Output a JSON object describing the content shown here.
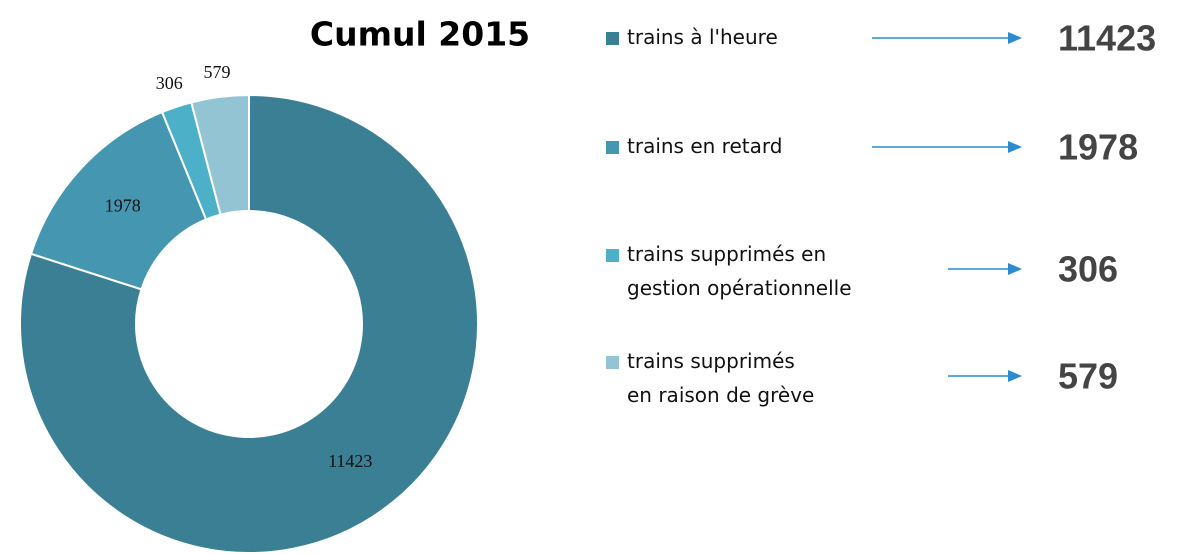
{
  "chart_data": {
    "type": "donut",
    "title": "Cumul 2015",
    "categories": [
      "trains à l'heure",
      "trains en retard",
      "trains supprimés en\ngestion opérationnelle",
      "trains supprimés\nen raison de grève"
    ],
    "values": [
      11423,
      1978,
      306,
      579
    ],
    "colors": [
      "#3a7f94",
      "#4596b0",
      "#4bb0c8",
      "#93c4d4"
    ]
  }
}
